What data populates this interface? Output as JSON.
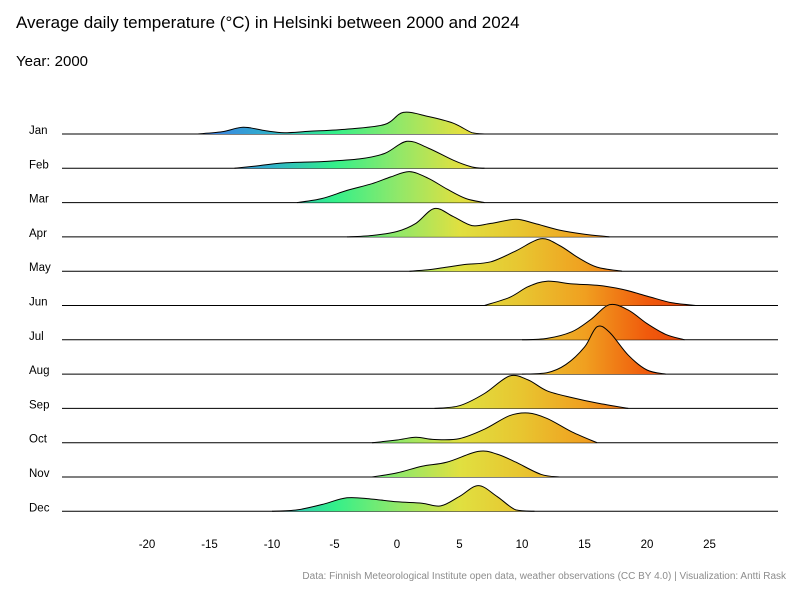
{
  "title": "Average daily temperature (°C) in Helsinki between 2000 and 2024",
  "subtitle": "Year: 2000",
  "caption": "Data: Finnish Meteorological Institute open data, weather observations (CC BY 4.0) | Visualization: Antti Rask",
  "chart_data": {
    "type": "ridgeline",
    "year": 2000,
    "xlabel": "",
    "ylabel": "",
    "xlim": [
      -27,
      30
    ],
    "x_ticks": [
      -20,
      -15,
      -10,
      -5,
      0,
      5,
      10,
      15,
      20,
      25
    ],
    "grid": false,
    "color_scale": [
      {
        "temp": -15,
        "color": "#3b82e6"
      },
      {
        "temp": -10,
        "color": "#2fb2c9"
      },
      {
        "temp": -5,
        "color": "#33f08a"
      },
      {
        "temp": 0,
        "color": "#8fe86a"
      },
      {
        "temp": 5,
        "color": "#e0e040"
      },
      {
        "temp": 10,
        "color": "#e8c530"
      },
      {
        "temp": 15,
        "color": "#f0a020"
      },
      {
        "temp": 20,
        "color": "#f05a0c"
      },
      {
        "temp": 25,
        "color": "#e83a0a"
      }
    ],
    "months": [
      {
        "month": "Jan",
        "density": [
          [
            -16,
            0
          ],
          [
            -14,
            0.08
          ],
          [
            -12.3,
            0.25
          ],
          [
            -10.5,
            0.12
          ],
          [
            -9,
            0.05
          ],
          [
            -7,
            0.1
          ],
          [
            -4,
            0.18
          ],
          [
            -1,
            0.35
          ],
          [
            0.5,
            0.8
          ],
          [
            2.5,
            0.65
          ],
          [
            4.5,
            0.4
          ],
          [
            6,
            0.05
          ],
          [
            7,
            0
          ]
        ]
      },
      {
        "month": "Feb",
        "density": [
          [
            -13,
            0
          ],
          [
            -11,
            0.1
          ],
          [
            -9,
            0.2
          ],
          [
            -6,
            0.25
          ],
          [
            -3,
            0.35
          ],
          [
            -1,
            0.55
          ],
          [
            0.8,
            1.0
          ],
          [
            2.5,
            0.75
          ],
          [
            4.5,
            0.3
          ],
          [
            6,
            0.05
          ],
          [
            7,
            0
          ]
        ]
      },
      {
        "month": "Mar",
        "density": [
          [
            -8,
            0
          ],
          [
            -6,
            0.15
          ],
          [
            -4,
            0.45
          ],
          [
            -2,
            0.7
          ],
          [
            -0.5,
            0.95
          ],
          [
            1,
            1.15
          ],
          [
            2.5,
            0.9
          ],
          [
            4,
            0.5
          ],
          [
            5.5,
            0.15
          ],
          [
            7,
            0
          ]
        ]
      },
      {
        "month": "Apr",
        "density": [
          [
            -4,
            0
          ],
          [
            -2,
            0.05
          ],
          [
            0,
            0.2
          ],
          [
            1.5,
            0.5
          ],
          [
            3,
            1.05
          ],
          [
            4.5,
            0.75
          ],
          [
            6,
            0.42
          ],
          [
            7.5,
            0.5
          ],
          [
            9.5,
            0.65
          ],
          [
            11,
            0.5
          ],
          [
            13,
            0.25
          ],
          [
            15,
            0.1
          ],
          [
            17,
            0
          ]
        ]
      },
      {
        "month": "May",
        "density": [
          [
            1,
            0
          ],
          [
            2.5,
            0.05
          ],
          [
            4,
            0.15
          ],
          [
            5.5,
            0.25
          ],
          [
            7.5,
            0.35
          ],
          [
            9.5,
            0.75
          ],
          [
            11.5,
            1.2
          ],
          [
            13,
            0.95
          ],
          [
            14.5,
            0.5
          ],
          [
            16,
            0.15
          ],
          [
            18,
            0
          ]
        ]
      },
      {
        "month": "Jun",
        "density": [
          [
            7,
            0
          ],
          [
            9,
            0.3
          ],
          [
            10.5,
            0.7
          ],
          [
            12,
            0.9
          ],
          [
            14,
            0.8
          ],
          [
            16,
            0.75
          ],
          [
            18,
            0.6
          ],
          [
            20,
            0.35
          ],
          [
            22,
            0.1
          ],
          [
            24,
            0
          ]
        ]
      },
      {
        "month": "Jul",
        "density": [
          [
            10,
            0
          ],
          [
            12,
            0.05
          ],
          [
            14,
            0.3
          ],
          [
            15.5,
            0.75
          ],
          [
            17,
            1.3
          ],
          [
            18.5,
            1.1
          ],
          [
            20,
            0.6
          ],
          [
            21.5,
            0.2
          ],
          [
            23,
            0
          ]
        ]
      },
      {
        "month": "Aug",
        "density": [
          [
            10,
            0
          ],
          [
            12,
            0.05
          ],
          [
            13.5,
            0.35
          ],
          [
            15,
            1.0
          ],
          [
            16,
            1.75
          ],
          [
            17,
            1.55
          ],
          [
            18.5,
            0.7
          ],
          [
            20,
            0.15
          ],
          [
            21.5,
            0
          ]
        ]
      },
      {
        "month": "Sep",
        "density": [
          [
            3,
            0
          ],
          [
            5,
            0.1
          ],
          [
            7,
            0.55
          ],
          [
            9,
            1.2
          ],
          [
            10.5,
            1.05
          ],
          [
            12,
            0.65
          ],
          [
            14,
            0.4
          ],
          [
            16,
            0.2
          ],
          [
            18.5,
            0
          ]
        ]
      },
      {
        "month": "Oct",
        "density": [
          [
            -2,
            0
          ],
          [
            0,
            0.1
          ],
          [
            1.5,
            0.2
          ],
          [
            3,
            0.12
          ],
          [
            5,
            0.15
          ],
          [
            7,
            0.5
          ],
          [
            9,
            1.0
          ],
          [
            10.5,
            1.1
          ],
          [
            12,
            0.9
          ],
          [
            14,
            0.4
          ],
          [
            16,
            0
          ]
        ]
      },
      {
        "month": "Nov",
        "density": [
          [
            -2,
            0
          ],
          [
            0,
            0.15
          ],
          [
            2,
            0.4
          ],
          [
            4,
            0.55
          ],
          [
            6.5,
            0.95
          ],
          [
            8,
            0.85
          ],
          [
            9.5,
            0.55
          ],
          [
            11.5,
            0.1
          ],
          [
            13,
            0
          ]
        ]
      },
      {
        "month": "Dec",
        "density": [
          [
            -10,
            0
          ],
          [
            -8,
            0.05
          ],
          [
            -6,
            0.25
          ],
          [
            -4,
            0.5
          ],
          [
            -2,
            0.45
          ],
          [
            0,
            0.35
          ],
          [
            2,
            0.3
          ],
          [
            3.5,
            0.2
          ],
          [
            5,
            0.55
          ],
          [
            6.5,
            0.95
          ],
          [
            8,
            0.55
          ],
          [
            9.5,
            0.05
          ],
          [
            11,
            0
          ]
        ]
      }
    ]
  }
}
